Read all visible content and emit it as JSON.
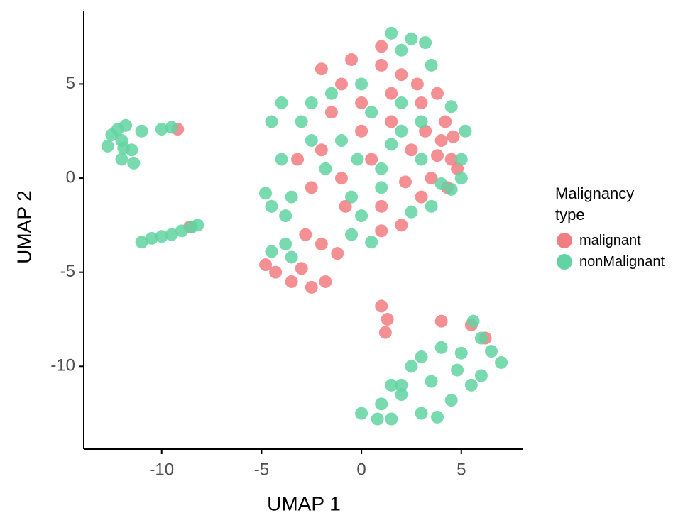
{
  "chart_data": {
    "type": "scatter",
    "x_label": "UMAP 1",
    "y_label": "UMAP 2",
    "legend_title": "Malignancy type",
    "xlim": [
      -13.9,
      8.1
    ],
    "ylim": [
      -14.4,
      8.9
    ],
    "xticks": [
      -10,
      -5,
      0,
      5
    ],
    "yticks": [
      -10,
      -5,
      0,
      5
    ],
    "grid": false,
    "legend_position": "right",
    "series": [
      {
        "name": "malignant",
        "color": "#f27d80",
        "x": [
          4,
          4.5,
          3.5,
          4.2,
          3,
          2,
          1,
          -0.5,
          -2,
          0,
          1.5,
          2.5,
          3,
          2,
          1,
          -1,
          -2,
          -1.5,
          0.5,
          -2.5,
          4.6,
          3.8,
          4.8,
          2.8,
          1.5,
          -1,
          0,
          -2.8,
          -2,
          -3.5,
          -2.5,
          -1.8,
          -4.3,
          -3,
          -4.8,
          -1.2,
          1,
          3.2,
          4.3,
          -3.2,
          -0.8,
          2.2,
          1,
          3.8,
          1,
          1.3,
          1.2,
          -8.6,
          -9.2,
          5.5,
          4,
          6.2
        ],
        "values": [
          2,
          1,
          0,
          3,
          4,
          5.5,
          6,
          6.3,
          5.8,
          4,
          3,
          1.5,
          -1,
          -2.5,
          -1.5,
          0,
          1.5,
          3.5,
          1,
          -0.5,
          2.2,
          1.2,
          0.5,
          5,
          4.5,
          5,
          2.5,
          -3,
          -3.5,
          -5.5,
          -5.8,
          -5.5,
          -5,
          -4.8,
          -4.6,
          -4,
          -2.8,
          2.5,
          -0.5,
          1,
          -1.5,
          -0.2,
          7,
          4.5,
          -6.8,
          -7.5,
          -8.2,
          -2.6,
          2.6,
          -7.8,
          -7.6,
          -8.5
        ]
      },
      {
        "name": "nonMalignant",
        "color": "#62d3a2",
        "x": [
          -12,
          -12.5,
          -11.5,
          -12,
          -11.8,
          -12.7,
          -11,
          -10,
          -9.5,
          -11.4,
          -11.9,
          -12.2,
          -11,
          -10.5,
          -10,
          -9.5,
          -9,
          -8.5,
          -8.2,
          -4.5,
          -4,
          -3.5,
          -4.5,
          -4.8,
          -3,
          -2.5,
          -1,
          0.5,
          2,
          1,
          -0.5,
          3,
          2,
          0,
          -1.5,
          4,
          5,
          5.2,
          4.5,
          3.5,
          2,
          2.5,
          1.5,
          3.2,
          -3.8,
          -4.5,
          -3.5,
          -4,
          -3.8,
          0,
          0.5,
          -0.5,
          2.5,
          1,
          3,
          -1.8,
          -0.2,
          1.5,
          -2.5,
          3.5,
          5,
          4.5,
          0,
          1,
          2,
          1.5,
          3,
          3.8,
          2.5,
          3,
          4,
          5,
          6,
          6.5,
          7,
          6,
          5.5,
          4.8,
          3.5,
          2,
          0.8,
          5.6,
          4.5,
          1.5
        ],
        "values": [
          2,
          2.3,
          1.5,
          1,
          2.8,
          1.7,
          2.5,
          2.6,
          2.7,
          0.8,
          1.6,
          2.6,
          -3.4,
          -3.2,
          -3.1,
          -3,
          -2.8,
          -2.6,
          -2.5,
          3,
          4,
          -1,
          -1.5,
          -0.8,
          3,
          2,
          2,
          3.5,
          2.5,
          0.5,
          -1,
          3,
          4,
          5,
          4.5,
          -0.3,
          1,
          2.5,
          3.8,
          6,
          6.8,
          7.4,
          7.7,
          7.2,
          -3.5,
          -3.9,
          -4.2,
          1,
          -2,
          -2,
          -3.4,
          -3,
          -1.8,
          -0.5,
          1,
          0.5,
          1,
          1.8,
          4,
          -1.5,
          0,
          -0.6,
          -12.5,
          -12,
          -11.5,
          -12.8,
          -12.5,
          -12.7,
          -10,
          -9.5,
          -9,
          -9.3,
          -8.5,
          -9.2,
          -9.8,
          -10.5,
          -11,
          -10.2,
          -10.8,
          -11,
          -12.8,
          -7.6,
          -11.8,
          -11
        ]
      }
    ]
  }
}
